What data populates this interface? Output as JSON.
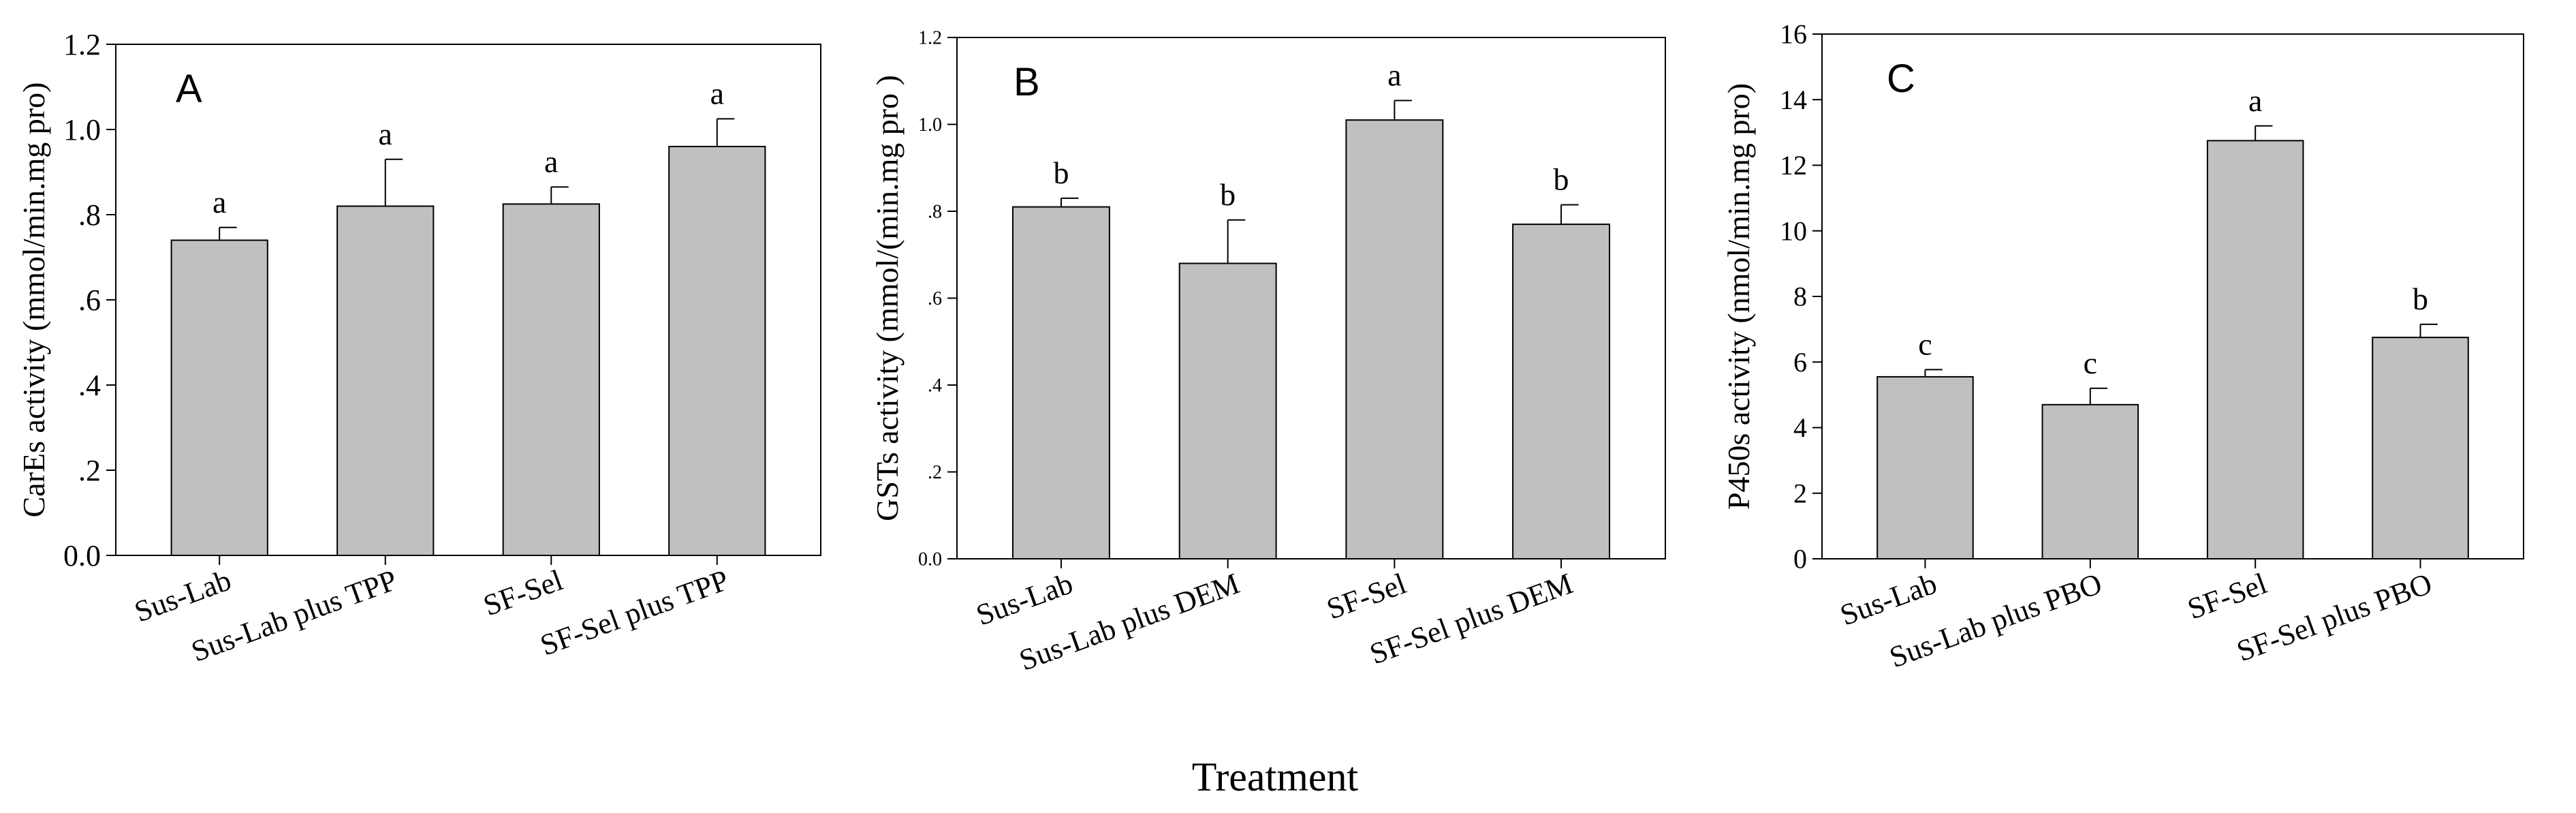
{
  "figure": {
    "xlabel": "Treatment"
  },
  "chart_data": [
    {
      "type": "bar",
      "panel_label": "A",
      "ylabel": "CarEs activity (mmol/min.mg pro)",
      "ylim": [
        0,
        1.2
      ],
      "yticks": [
        0,
        0.2,
        0.4,
        0.6,
        0.8,
        1.0,
        1.2
      ],
      "ytick_labels": [
        "0.0",
        ".2",
        ".4",
        ".6",
        ".8",
        "1.0",
        "1.2"
      ],
      "categories": [
        "Sus-Lab",
        "Sus-Lab plus TPP",
        "SF-Sel",
        "SF-Sel plus TPP"
      ],
      "values": [
        0.74,
        0.82,
        0.825,
        0.96
      ],
      "errors": [
        0.03,
        0.11,
        0.04,
        0.065
      ],
      "letters": [
        "a",
        "a",
        "a",
        "a"
      ]
    },
    {
      "type": "bar",
      "panel_label": "B",
      "ylabel": "GSTs activity (mmol/(min.mg pro )",
      "ylim": [
        0,
        1.2
      ],
      "yticks": [
        0,
        0.2,
        0.4,
        0.6,
        0.8,
        1.0,
        1.2
      ],
      "ytick_labels": [
        "0.0",
        ".2",
        ".4",
        ".6",
        ".8",
        "1.0",
        "1.2"
      ],
      "categories": [
        "Sus-Lab",
        "Sus-Lab plus DEM",
        "SF-Sel",
        "SF-Sel plus DEM"
      ],
      "values": [
        0.81,
        0.68,
        1.01,
        0.77
      ],
      "errors": [
        0.02,
        0.1,
        0.045,
        0.045
      ],
      "letters": [
        "b",
        "b",
        "a",
        "b"
      ]
    },
    {
      "type": "bar",
      "panel_label": "C",
      "ylabel": "P450s activity (nmol/min.mg pro)",
      "ylim": [
        0,
        16
      ],
      "yticks": [
        0,
        2,
        4,
        6,
        8,
        10,
        12,
        14,
        16
      ],
      "ytick_labels": [
        "0",
        "2",
        "4",
        "6",
        "8",
        "10",
        "12",
        "14",
        "16"
      ],
      "categories": [
        "Sus-Lab",
        "Sus-Lab plus PBO",
        "SF-Sel",
        "SF-Sel plus PBO"
      ],
      "values": [
        5.55,
        4.7,
        12.75,
        6.75
      ],
      "errors": [
        0.22,
        0.5,
        0.45,
        0.4
      ],
      "letters": [
        "c",
        "c",
        "a",
        "b"
      ]
    }
  ],
  "colors": {
    "bar_fill": "#c0c0c0",
    "stroke": "#000000"
  }
}
